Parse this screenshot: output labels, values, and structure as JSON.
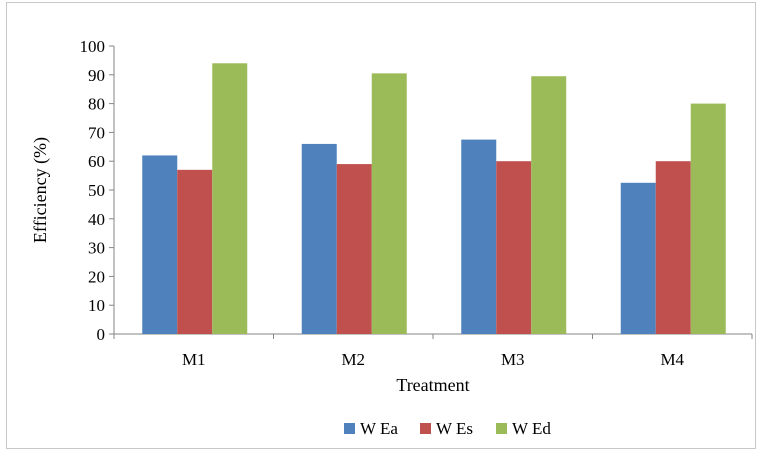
{
  "chart_data": {
    "type": "bar",
    "title": "",
    "xlabel": "Treatment",
    "ylabel": "Efficiency (%)",
    "categories": [
      "M1",
      "M2",
      "M3",
      "M4"
    ],
    "ylim": [
      0,
      100
    ],
    "yticks": [
      0,
      10,
      20,
      30,
      40,
      50,
      60,
      70,
      80,
      90,
      100
    ],
    "grid": false,
    "legend_position": "bottom",
    "series": [
      {
        "name": "W Ea",
        "color": "#4f81bd",
        "values": [
          62,
          66,
          67.5,
          52.5
        ]
      },
      {
        "name": "W Es",
        "color": "#c0504d",
        "values": [
          57,
          59,
          60,
          60
        ]
      },
      {
        "name": "W Ed",
        "color": "#9bbb59",
        "values": [
          94,
          90.5,
          89.5,
          80
        ]
      }
    ]
  }
}
